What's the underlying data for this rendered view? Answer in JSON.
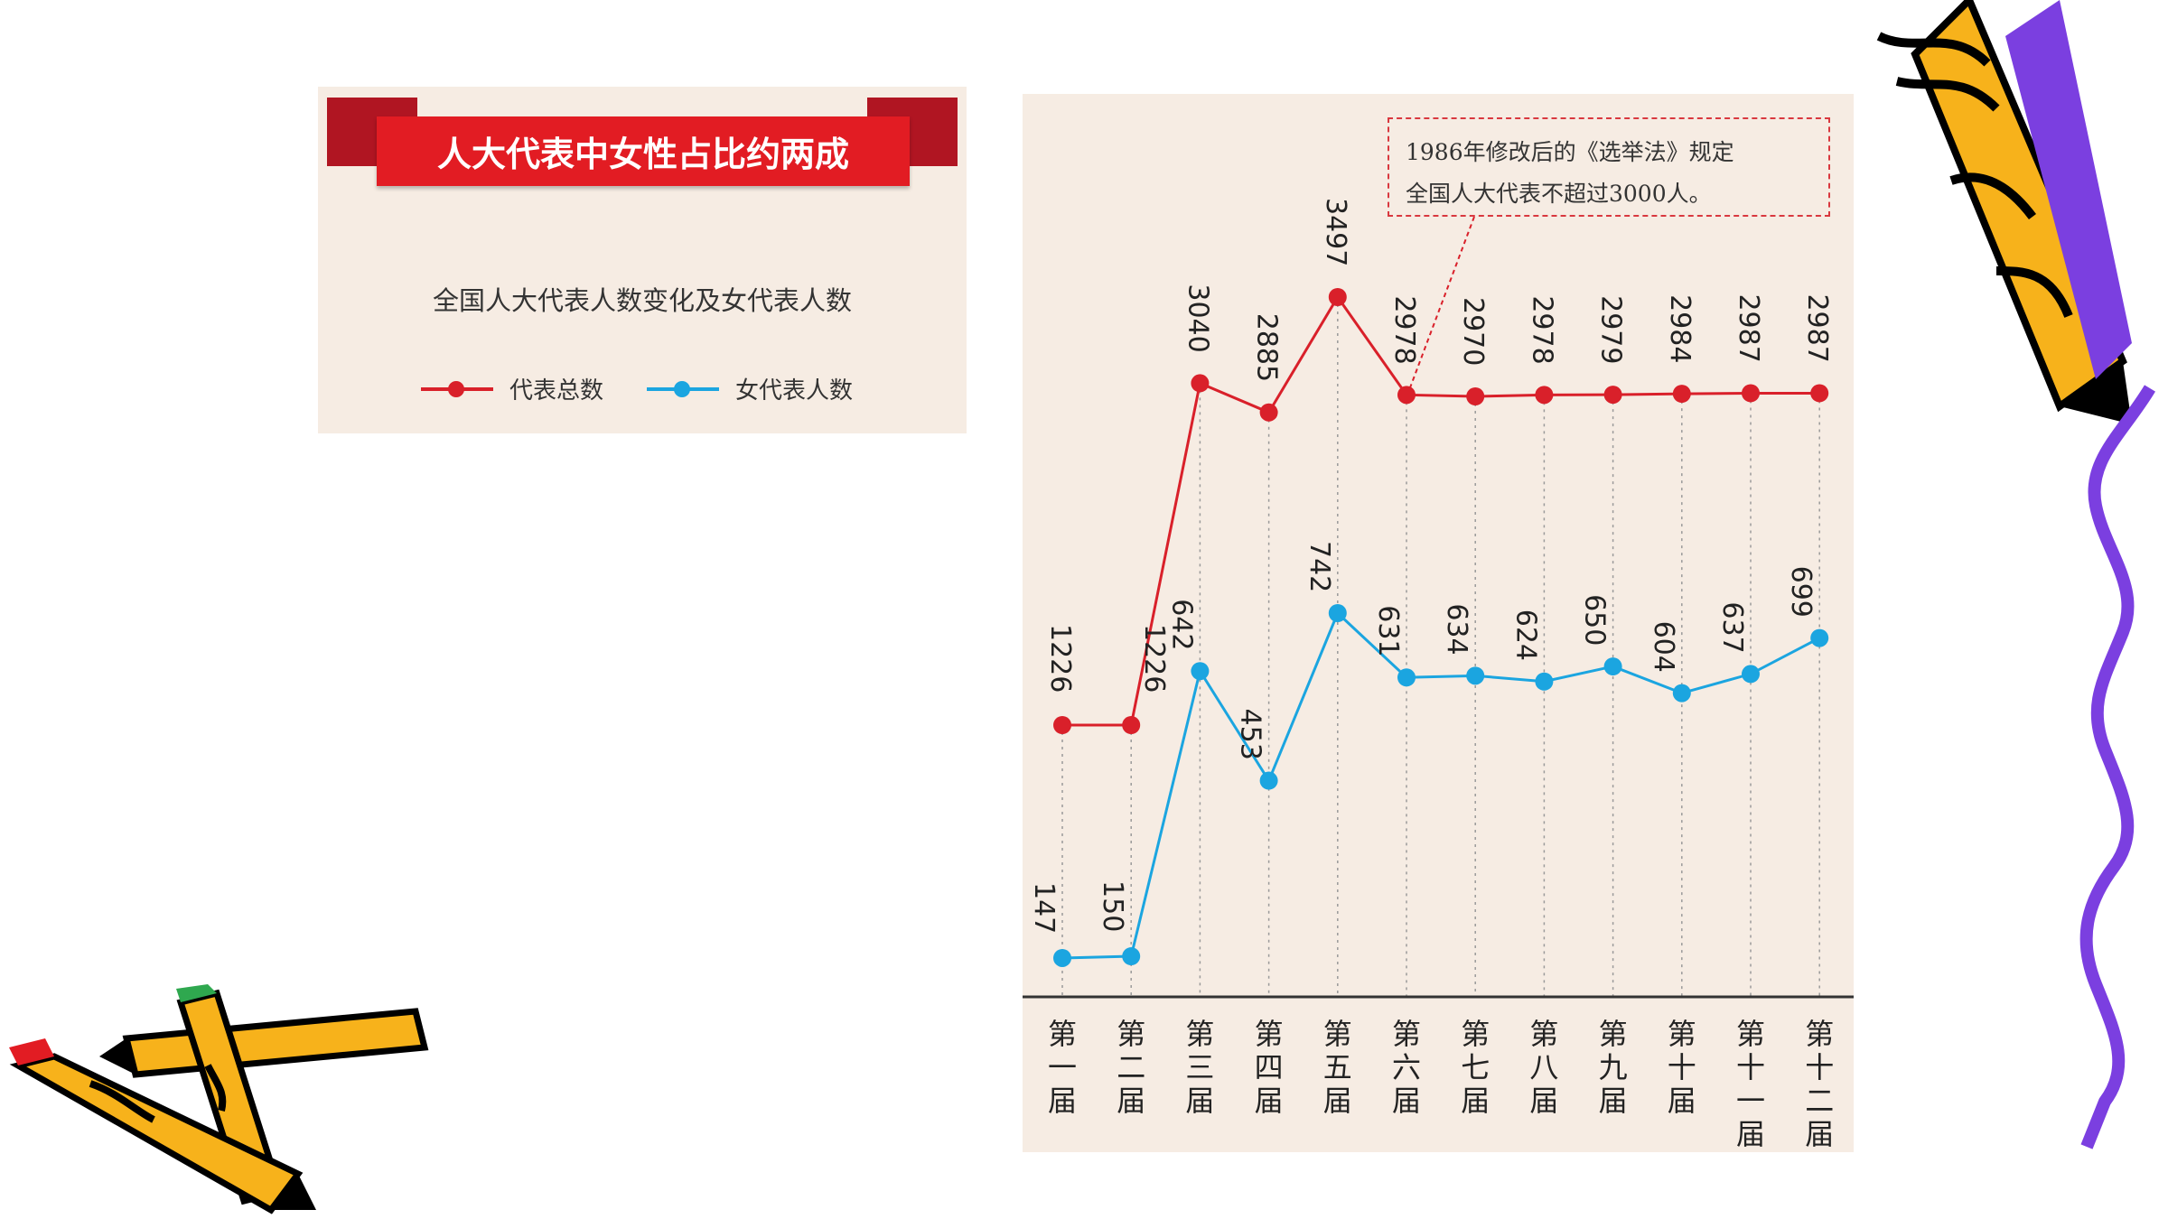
{
  "header": {
    "title": "人大代表中女性占比约两成",
    "subtitle": "全国人大代表人数变化及女代表人数"
  },
  "legend": {
    "total_label": "代表总数",
    "female_label": "女代表人数"
  },
  "annotation": {
    "line1": "1986年修改后的《选举法》规定",
    "line2": "全国人大代表不超过3000人。"
  },
  "colors": {
    "total": "#d9202a",
    "female": "#1ba5e0",
    "panel_bg": "#f6ece3",
    "ribbon": "#e21c23",
    "ribbon_dark": "#b01522"
  },
  "decorations": [
    "pencil-icon",
    "pencil-icon",
    "pencil-icon",
    "squiggle-line"
  ],
  "chart_data": {
    "type": "line",
    "categories": [
      "第一届",
      "第二届",
      "第三届",
      "第四届",
      "第五届",
      "第六届",
      "第七届",
      "第八届",
      "第九届",
      "第十届",
      "第十一届",
      "第十二届"
    ],
    "series": [
      {
        "name": "代表总数",
        "values": [
          1226,
          1226,
          3040,
          2885,
          3497,
          2978,
          2970,
          2978,
          2979,
          2984,
          2987,
          2987
        ],
        "color": "#d9202a"
      },
      {
        "name": "女代表人数",
        "values": [
          147,
          150,
          642,
          453,
          742,
          631,
          634,
          624,
          650,
          604,
          637,
          699
        ],
        "color": "#1ba5e0"
      }
    ],
    "grid": "dotted vertical lines per category",
    "legend": "top-left"
  }
}
